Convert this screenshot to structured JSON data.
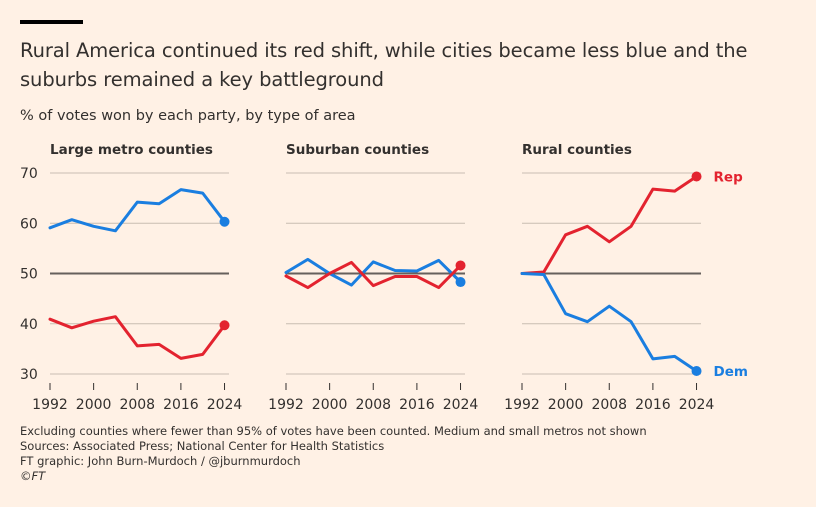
{
  "header": {
    "title": "Rural America continued its red shift, while cities became less blue and the suburbs remained a key battleground",
    "subtitle": "% of votes won by each party, by type of area"
  },
  "footer": {
    "note": "Excluding counties where fewer than 95% of votes have been counted. Medium and small metros not shown",
    "sources": "Sources: Associated Press; National Center for Health Statistics",
    "credit": "FT graphic: John Burn-Murdoch / @jburnmurdoch",
    "copyright": "©FT"
  },
  "colors": {
    "dem": "#1a7ee0",
    "rep": "#e3232f",
    "grid": "#c8bdb2",
    "baseline": "#66605c",
    "text": "#33302e",
    "background": "#fff1e5"
  },
  "chart_data": [
    {
      "type": "line",
      "title": "Large metro counties",
      "x": [
        1992,
        1996,
        2000,
        2004,
        2008,
        2012,
        2016,
        2020,
        2024
      ],
      "xticks": [
        "1992",
        "2000",
        "2008",
        "2016",
        "2024"
      ],
      "yticks": [
        "70",
        "60",
        "50",
        "40",
        "30"
      ],
      "ylim": [
        30,
        70
      ],
      "grid": true,
      "series": [
        {
          "name": "Dem",
          "values": [
            59.1,
            60.7,
            59.4,
            58.5,
            64.2,
            63.9,
            66.7,
            66.0,
            60.3
          ]
        },
        {
          "name": "Rep",
          "values": [
            40.9,
            39.2,
            40.5,
            41.4,
            35.6,
            35.9,
            33.1,
            33.9,
            39.7
          ]
        }
      ]
    },
    {
      "type": "line",
      "title": "Suburban counties",
      "x": [
        1992,
        1996,
        2000,
        2004,
        2008,
        2012,
        2016,
        2020,
        2024
      ],
      "xticks": [
        "1992",
        "2000",
        "2008",
        "2016",
        "2024"
      ],
      "ylim": [
        30,
        70
      ],
      "grid": true,
      "series": [
        {
          "name": "Dem",
          "values": [
            50.2,
            52.8,
            50.0,
            47.7,
            52.3,
            50.6,
            50.5,
            52.6,
            48.3
          ]
        },
        {
          "name": "Rep",
          "values": [
            49.5,
            47.2,
            50.0,
            52.2,
            47.6,
            49.4,
            49.4,
            47.2,
            51.6
          ]
        }
      ]
    },
    {
      "type": "line",
      "title": "Rural counties",
      "x": [
        1992,
        1996,
        2000,
        2004,
        2008,
        2012,
        2016,
        2020,
        2024
      ],
      "xticks": [
        "1992",
        "2000",
        "2008",
        "2016",
        "2024"
      ],
      "ylim": [
        30,
        70
      ],
      "grid": true,
      "series": [
        {
          "name": "Rep",
          "label": "Rep",
          "values": [
            50.0,
            50.3,
            57.7,
            59.4,
            56.3,
            59.4,
            66.8,
            66.4,
            69.3
          ]
        },
        {
          "name": "Dem",
          "label": "Dem",
          "values": [
            50.0,
            49.8,
            42.0,
            40.4,
            43.5,
            40.4,
            33.0,
            33.5,
            30.6
          ]
        }
      ]
    }
  ]
}
